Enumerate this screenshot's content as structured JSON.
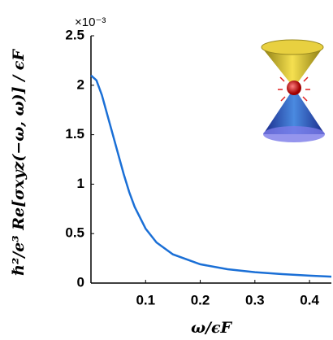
{
  "chart_data": {
    "type": "line",
    "xlabel": "ω/ϵF",
    "ylabel": "ℏ²/e³ Re[σxyz(−ω, ω)] / ϵF",
    "y_multiplier": "×10⁻³",
    "x": [
      0,
      0.01,
      0.02,
      0.03,
      0.04,
      0.05,
      0.06,
      0.07,
      0.08,
      0.1,
      0.12,
      0.15,
      0.2,
      0.25,
      0.3,
      0.35,
      0.4,
      0.44
    ],
    "series": [
      {
        "color": "#1a6fd6",
        "values": [
          2.1,
          2.05,
          1.9,
          1.7,
          1.5,
          1.3,
          1.1,
          0.92,
          0.77,
          0.55,
          0.41,
          0.29,
          0.19,
          0.14,
          0.11,
          0.09,
          0.075,
          0.065
        ]
      }
    ],
    "xlim": [
      0,
      0.44
    ],
    "ylim": [
      0,
      2.5
    ],
    "xticks": [
      0.1,
      0.2,
      0.3,
      0.4
    ],
    "yticks": [
      0,
      0.5,
      1,
      1.5,
      2,
      2.5
    ],
    "grid": false
  }
}
